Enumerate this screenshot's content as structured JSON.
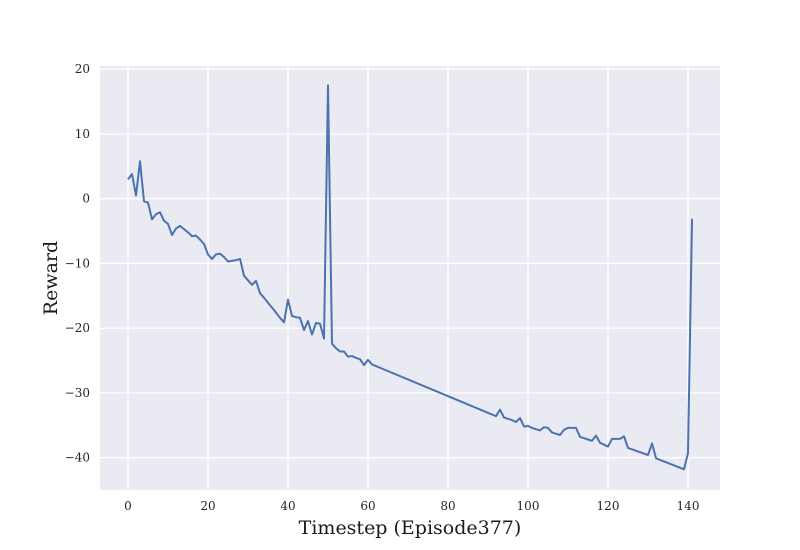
{
  "chart_data": {
    "type": "line",
    "title": "",
    "xlabel": "Timestep (Episode377)",
    "ylabel": "Reward",
    "xlim": [
      -7,
      148
    ],
    "ylim": [
      -45,
      20.5
    ],
    "xticks": [
      0,
      20,
      40,
      60,
      80,
      100,
      120,
      140
    ],
    "yticks": [
      20,
      10,
      0,
      -10,
      -20,
      -30,
      -40
    ],
    "xtick_labels": [
      "0",
      "20",
      "40",
      "60",
      "80",
      "100",
      "120",
      "140"
    ],
    "ytick_labels": [
      "20",
      "10",
      "0",
      "−10",
      "−20",
      "−30",
      "−40"
    ],
    "grid": true,
    "background": "#eaeaf2",
    "line_color": "#4c72b0",
    "series": [
      {
        "x": [
          0,
          1,
          2,
          3,
          4,
          5,
          6,
          7,
          8,
          9,
          10,
          11,
          12,
          13,
          14,
          15,
          16,
          17,
          18,
          19,
          20,
          21,
          22,
          23,
          24,
          25,
          26,
          27,
          28,
          29,
          30,
          31,
          32,
          33,
          34,
          35,
          36,
          37,
          38,
          39,
          40,
          41,
          42,
          43,
          44,
          45,
          46,
          47,
          48,
          49,
          50,
          51,
          52,
          53,
          54,
          55,
          56,
          57,
          58,
          59,
          60,
          61,
          92,
          93,
          94,
          95,
          96,
          97,
          98,
          99,
          100,
          101,
          102,
          103,
          104,
          105,
          106,
          107,
          108,
          109,
          110,
          111,
          112,
          113,
          114,
          115,
          116,
          117,
          118,
          119,
          120,
          121,
          122,
          123,
          124,
          125,
          130,
          131,
          132,
          139,
          140,
          141
        ],
        "values": [
          3,
          3.8,
          0.5,
          5.8,
          -0.4,
          -0.6,
          -3.2,
          -2.4,
          -2.1,
          -3.4,
          -3.9,
          -5.6,
          -4.6,
          -4.2,
          -4.7,
          -5.2,
          -5.8,
          -5.7,
          -6.3,
          -7.0,
          -8.6,
          -9.3,
          -8.6,
          -8.5,
          -9.0,
          -9.7,
          -9.6,
          -9.5,
          -9.3,
          -11.9,
          -12.6,
          -13.3,
          -12.7,
          -14.6,
          -15.3,
          -16.1,
          -16.8,
          -17.6,
          -18.4,
          -19.1,
          -15.6,
          -18.1,
          -18.3,
          -18.4,
          -20.3,
          -18.9,
          -21.0,
          -19.2,
          -19.3,
          -21.6,
          17.5,
          -22.4,
          -23.1,
          -23.6,
          -23.6,
          -24.4,
          -24.3,
          -24.6,
          -24.8,
          -25.7,
          -24.9,
          -25.6,
          -33.6,
          -32.6,
          -33.8,
          -34.0,
          -34.2,
          -34.5,
          -33.9,
          -35.2,
          -35.1,
          -35.4,
          -35.6,
          -35.8,
          -35.3,
          -35.4,
          -36.1,
          -36.3,
          -36.5,
          -35.7,
          -35.4,
          -35.4,
          -35.4,
          -36.8,
          -37.0,
          -37.2,
          -37.4,
          -36.6,
          -37.7,
          -38.0,
          -38.3,
          -37.1,
          -37.1,
          -37.1,
          -36.7,
          -38.5,
          -39.6,
          -37.8,
          -40.1,
          -41.8,
          -39.3,
          -3.1
        ]
      }
    ]
  }
}
